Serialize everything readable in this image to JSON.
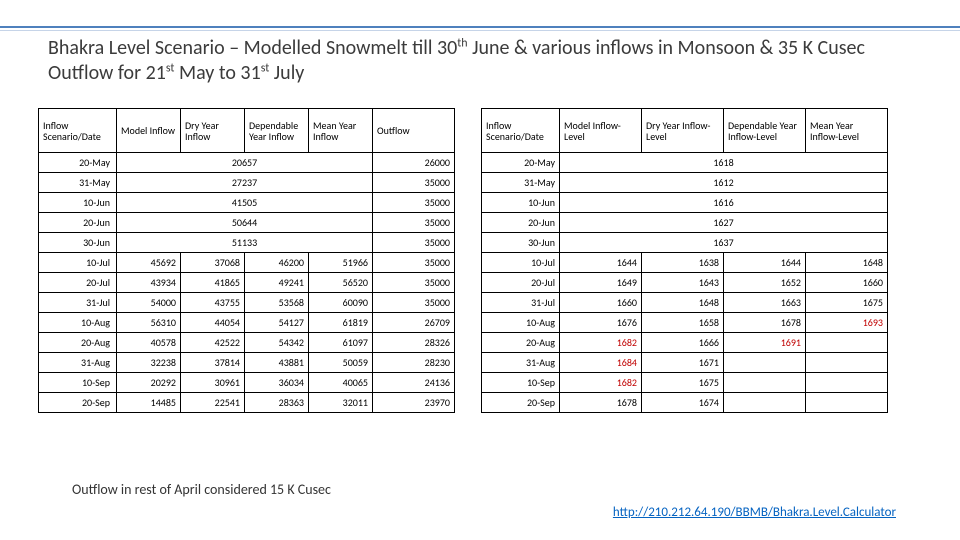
{
  "title_html": "Bhakra Level Scenario – Modelled Snowmelt till 30<sup>th</sup> June & various inflows in Monsoon & 35 K Cusec Outflow for 21<sup>st</sup> May to 31<sup>st</sup> July",
  "footnote": "Outflow in rest of April considered 15 K Cusec",
  "link_text": "http://210.212.64.190/BBMB/Bhakra.Level.Calculator",
  "table1": {
    "headers": [
      "Inflow Scenario/Date",
      "Model Inflow",
      "Dry Year Inflow",
      "Dependable Year Inflow",
      "Mean Year Inflow",
      "Outflow"
    ],
    "merged_rows": [
      {
        "date": "20-May",
        "merged_value": "20657",
        "outflow": "26000"
      },
      {
        "date": "31-May",
        "merged_value": "27237",
        "outflow": "35000"
      },
      {
        "date": "10-Jun",
        "merged_value": "41505",
        "outflow": "35000"
      },
      {
        "date": "20-Jun",
        "merged_value": "50644",
        "outflow": "35000"
      },
      {
        "date": "30-Jun",
        "merged_value": "51133",
        "outflow": "35000"
      }
    ],
    "rows": [
      {
        "date": "10-Jul",
        "v": [
          "45692",
          "37068",
          "46200",
          "51966"
        ],
        "outflow": "35000"
      },
      {
        "date": "20-Jul",
        "v": [
          "43934",
          "41865",
          "49241",
          "56520"
        ],
        "outflow": "35000"
      },
      {
        "date": "31-Jul",
        "v": [
          "54000",
          "43755",
          "53568",
          "60090"
        ],
        "outflow": "35000"
      },
      {
        "date": "10-Aug",
        "v": [
          "56310",
          "44054",
          "54127",
          "61819"
        ],
        "outflow": "26709"
      },
      {
        "date": "20-Aug",
        "v": [
          "40578",
          "42522",
          "54342",
          "61097"
        ],
        "outflow": "28326"
      },
      {
        "date": "31-Aug",
        "v": [
          "32238",
          "37814",
          "43881",
          "50059"
        ],
        "outflow": "28230"
      },
      {
        "date": "10-Sep",
        "v": [
          "20292",
          "30961",
          "36034",
          "40065"
        ],
        "outflow": "24136"
      },
      {
        "date": "20-Sep",
        "v": [
          "14485",
          "22541",
          "28363",
          "32011"
        ],
        "outflow": "23970"
      }
    ]
  },
  "table2": {
    "headers": [
      "Inflow Scenario/Date",
      "Model Inflow-Level",
      "Dry Year Inflow-Level",
      "Dependable Year Inflow-Level",
      "Mean Year Inflow-Level"
    ],
    "merged_rows": [
      {
        "date": "20-May",
        "merged_value": "1618"
      },
      {
        "date": "31-May",
        "merged_value": "1612"
      },
      {
        "date": "10-Jun",
        "merged_value": "1616"
      },
      {
        "date": "20-Jun",
        "merged_value": "1627"
      },
      {
        "date": "30-Jun",
        "merged_value": "1637"
      }
    ],
    "rows": [
      {
        "date": "10-Jul",
        "v": [
          "1644",
          "1638",
          "1644",
          "1648"
        ],
        "red": []
      },
      {
        "date": "20-Jul",
        "v": [
          "1649",
          "1643",
          "1652",
          "1660"
        ],
        "red": []
      },
      {
        "date": "31-Jul",
        "v": [
          "1660",
          "1648",
          "1663",
          "1675"
        ],
        "red": []
      },
      {
        "date": "10-Aug",
        "v": [
          "1676",
          "1658",
          "1678",
          "1693"
        ],
        "red": [
          3
        ]
      },
      {
        "date": "20-Aug",
        "v": [
          "1682",
          "1666",
          "1691",
          ""
        ],
        "red": [
          0,
          2
        ]
      },
      {
        "date": "31-Aug",
        "v": [
          "1684",
          "1671",
          "",
          ""
        ],
        "red": [
          0
        ]
      },
      {
        "date": "10-Sep",
        "v": [
          "1682",
          "1675",
          "",
          ""
        ],
        "red": [
          0
        ]
      },
      {
        "date": "20-Sep",
        "v": [
          "1678",
          "1674",
          "",
          ""
        ],
        "red": []
      }
    ]
  },
  "colors": {
    "accent_rule": "#4f81bd",
    "link": "#0563c1",
    "alert": "#c00000",
    "border": "#000000",
    "background": "#ffffff"
  }
}
